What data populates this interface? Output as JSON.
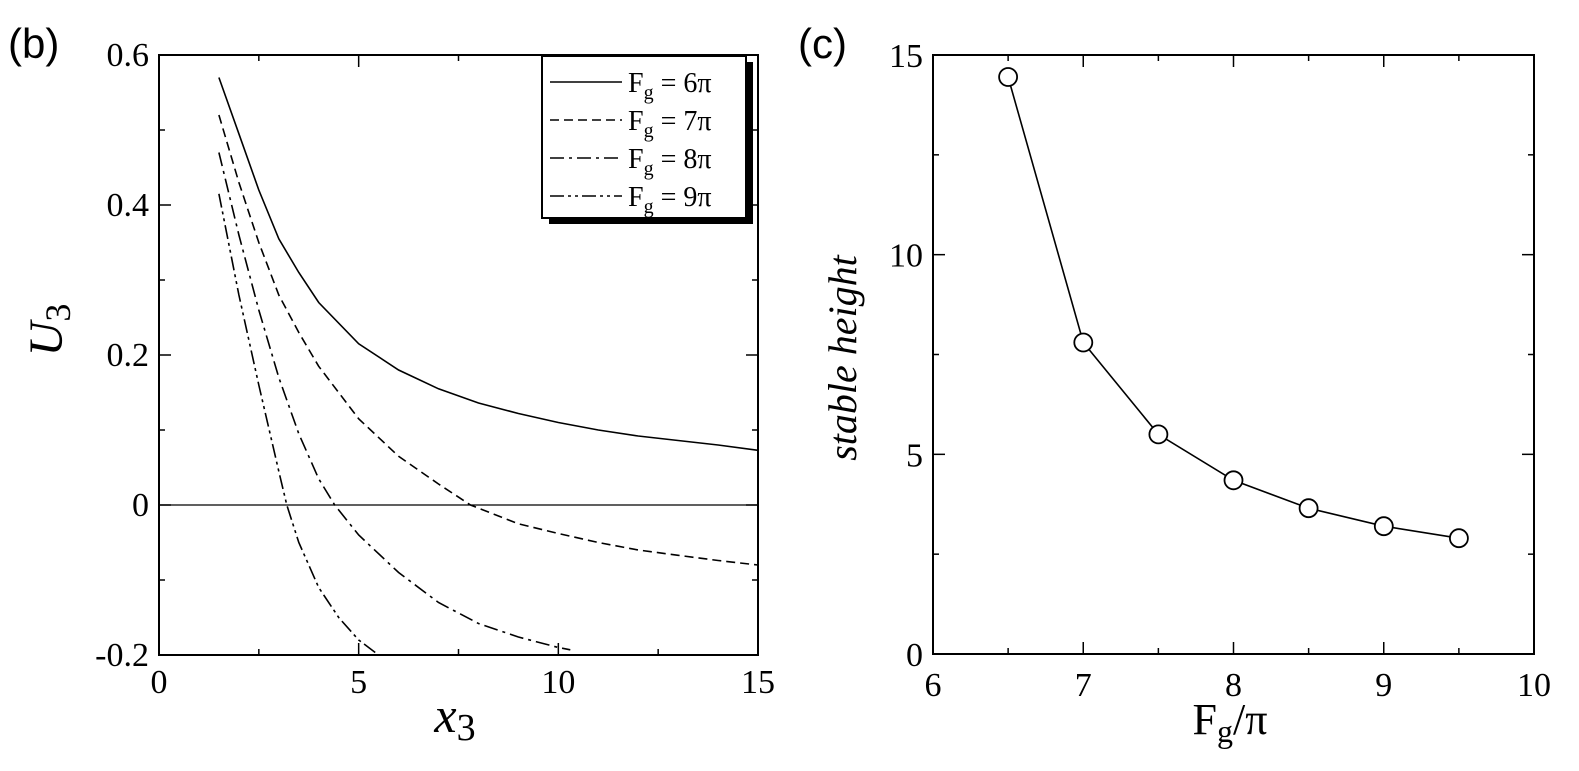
{
  "chart_data": [
    {
      "type": "line",
      "panel_label": "(b)",
      "xlabel": "x",
      "xlabel_sub": "3",
      "ylabel": "U",
      "ylabel_sub": "3",
      "xlim": [
        0,
        15
      ],
      "ylim": [
        -0.2,
        0.6
      ],
      "x_ticks": [
        0,
        5,
        10,
        15
      ],
      "x_tick_labels": [
        "0",
        "5",
        "10",
        "15"
      ],
      "y_ticks": [
        -0.2,
        0,
        0.2,
        0.4,
        0.6
      ],
      "y_tick_labels": [
        "-0.2",
        "0",
        "0.2",
        "0.4",
        "0.6"
      ],
      "grid": false,
      "reference_line_y": 0,
      "legend": {
        "placement": "top-right",
        "entries": [
          {
            "base": "F",
            "sub": "g",
            "value": " = 6π"
          },
          {
            "base": "F",
            "sub": "g",
            "value": " = 7π"
          },
          {
            "base": "F",
            "sub": "g",
            "value": " = 8π"
          },
          {
            "base": "F",
            "sub": "g",
            "value": " = 9π"
          }
        ]
      },
      "series": [
        {
          "style": "solid",
          "x": [
            1.5,
            2,
            2.5,
            3,
            3.5,
            4,
            5,
            6,
            7,
            8,
            9,
            10,
            11,
            12,
            13,
            14,
            15
          ],
          "y": [
            0.57,
            0.495,
            0.42,
            0.355,
            0.31,
            0.27,
            0.215,
            0.18,
            0.155,
            0.136,
            0.122,
            0.11,
            0.1,
            0.092,
            0.086,
            0.08,
            0.073
          ]
        },
        {
          "style": "dashed",
          "x": [
            1.5,
            2,
            2.5,
            3,
            3.5,
            4,
            5,
            6,
            7,
            7.8,
            9,
            10,
            11,
            12,
            13,
            14,
            15
          ],
          "y": [
            0.52,
            0.43,
            0.35,
            0.28,
            0.23,
            0.185,
            0.115,
            0.065,
            0.028,
            0.0,
            -0.025,
            -0.038,
            -0.05,
            -0.06,
            -0.067,
            -0.074,
            -0.08
          ]
        },
        {
          "style": "dashdot",
          "x": [
            1.5,
            2,
            2.5,
            3,
            3.5,
            4,
            4.4,
            5,
            6,
            7,
            8,
            9,
            10,
            10.3
          ],
          "y": [
            0.47,
            0.36,
            0.26,
            0.17,
            0.095,
            0.035,
            0.0,
            -0.04,
            -0.09,
            -0.13,
            -0.158,
            -0.176,
            -0.19,
            -0.193
          ]
        },
        {
          "style": "dashdotdot",
          "x": [
            1.5,
            2,
            2.5,
            3,
            3.2,
            3.5,
            4,
            4.5,
            5,
            5.5
          ],
          "y": [
            0.415,
            0.28,
            0.16,
            0.045,
            0.0,
            -0.05,
            -0.11,
            -0.15,
            -0.18,
            -0.2
          ]
        }
      ]
    },
    {
      "type": "line",
      "panel_label": "(c)",
      "xlabel_base": "F",
      "xlabel_sub": "g",
      "xlabel_rest": "/π",
      "ylabel": "stable height",
      "xlim": [
        6,
        10
      ],
      "ylim": [
        0,
        15
      ],
      "x_ticks": [
        6,
        7,
        8,
        9,
        10
      ],
      "x_tick_labels": [
        "6",
        "7",
        "8",
        "9",
        "10"
      ],
      "y_ticks": [
        0,
        5,
        10,
        15
      ],
      "y_tick_labels": [
        "0",
        "5",
        "10",
        "15"
      ],
      "grid": false,
      "markers": "open-circle",
      "series": [
        {
          "x": [
            6.5,
            7.0,
            7.5,
            8.0,
            8.5,
            9.0,
            9.5
          ],
          "y": [
            14.45,
            7.8,
            5.5,
            4.35,
            3.65,
            3.2,
            2.9
          ]
        }
      ]
    }
  ]
}
